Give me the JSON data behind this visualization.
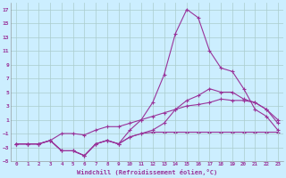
{
  "title": "",
  "xlabel": "Windchill (Refroidissement éolien,°C)",
  "ylabel": "",
  "background_color": "#cceeff",
  "grid_color": "#aacccc",
  "line_color": "#993399",
  "xlim": [
    -0.5,
    23.5
  ],
  "ylim": [
    -5,
    18
  ],
  "xticks": [
    0,
    1,
    2,
    3,
    4,
    5,
    6,
    7,
    8,
    9,
    10,
    11,
    12,
    13,
    14,
    15,
    16,
    17,
    18,
    19,
    20,
    21,
    22,
    23
  ],
  "yticks": [
    -5,
    -3,
    -1,
    1,
    3,
    5,
    7,
    9,
    11,
    13,
    15,
    17
  ],
  "line_peak_x": [
    0,
    1,
    2,
    3,
    4,
    5,
    6,
    7,
    8,
    9,
    10,
    11,
    12,
    13,
    14,
    15,
    16,
    17,
    18,
    19,
    20,
    21,
    22,
    23
  ],
  "line_peak_y": [
    -2.5,
    -2.5,
    -2.5,
    -2.0,
    -3.5,
    -3.5,
    -4.2,
    -2.5,
    -2.0,
    -2.5,
    -0.5,
    1.0,
    3.5,
    7.5,
    13.5,
    17.0,
    15.8,
    11.0,
    8.5,
    8.0,
    5.5,
    2.5,
    1.5,
    -0.5
  ],
  "line_flat_x": [
    0,
    1,
    2,
    3,
    4,
    5,
    6,
    7,
    8,
    9,
    10,
    11,
    12,
    13,
    14,
    15,
    16,
    17,
    18,
    19,
    20,
    21,
    22,
    23
  ],
  "line_flat_y": [
    -2.5,
    -2.5,
    -2.5,
    -2.0,
    -3.5,
    -3.5,
    -4.2,
    -2.5,
    -2.0,
    -2.5,
    -1.5,
    -1.0,
    -0.8,
    -0.8,
    -0.8,
    -0.8,
    -0.8,
    -0.8,
    -0.8,
    -0.8,
    -0.8,
    -0.8,
    -0.8,
    -0.8
  ],
  "line_diag_x": [
    0,
    1,
    2,
    3,
    4,
    5,
    6,
    7,
    8,
    9,
    10,
    11,
    12,
    13,
    14,
    15,
    16,
    17,
    18,
    19,
    20,
    21,
    22,
    23
  ],
  "line_diag_y": [
    -2.5,
    -2.5,
    -2.5,
    -2.0,
    -1.0,
    -1.0,
    -1.2,
    -0.5,
    0.0,
    0.0,
    0.5,
    1.0,
    1.5,
    2.0,
    2.5,
    3.0,
    3.2,
    3.5,
    4.0,
    3.8,
    3.8,
    3.5,
    2.5,
    0.5
  ],
  "line_jagged_x": [
    0,
    1,
    2,
    3,
    4,
    5,
    6,
    7,
    8,
    9,
    10,
    11,
    12,
    13,
    14,
    15,
    16,
    17,
    18,
    19,
    20,
    21,
    22,
    23
  ],
  "line_jagged_y": [
    -2.5,
    -2.5,
    -2.5,
    -2.0,
    -3.5,
    -3.5,
    -4.2,
    -2.5,
    -2.0,
    -2.5,
    -1.5,
    -1.0,
    -0.5,
    0.5,
    2.5,
    3.8,
    4.5,
    5.5,
    5.0,
    5.0,
    4.0,
    3.5,
    2.5,
    1.0
  ]
}
